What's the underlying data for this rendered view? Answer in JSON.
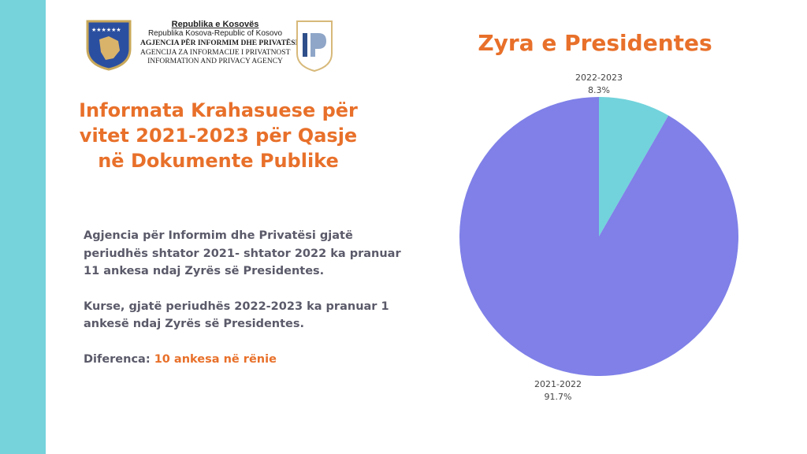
{
  "header": {
    "line1": "Republika e Kosovës",
    "line2": "Republika Kosova-Republic of Kosovo",
    "line3": "AGJENCIA PËR INFORMIM DHE PRIVATËSI",
    "line4": "AGENCIJA ZA INFORMACIJE I PRIVATNOST",
    "line5": "INFORMATION AND PRIVACY AGENCY",
    "ip_logo": "IP"
  },
  "title": "Informata Krahasuese për vitet 2021-2023 për Qasje në Dokumente Publike",
  "body": {
    "p1": "Agjencia për Informim dhe Privatësi gjatë periudhës shtator 2021- shtator 2022 ka pranuar 11 ankesa ndaj Zyrës së Presidentes.",
    "p2": "Kurse, gjatë periudhës 2022-2023 ka pranuar 1 ankesë ndaj Zyrës së Presidentes.",
    "diff_label": "Diferenca:",
    "diff_value": "10 ankesa në rënie"
  },
  "colors": {
    "accent": "#e8702a",
    "teal": "#72d3dc",
    "purple": "#8080e8"
  },
  "chart_data": {
    "type": "pie",
    "title": "Zyra e Presidentes",
    "categories": [
      "2022-2023",
      "2021-2022"
    ],
    "values": [
      8.3,
      91.7
    ],
    "labels": [
      "8.3%",
      "91.7%"
    ],
    "colors": [
      "#72d3dc",
      "#8080e8"
    ],
    "start": "top",
    "direction": "clockwise"
  }
}
